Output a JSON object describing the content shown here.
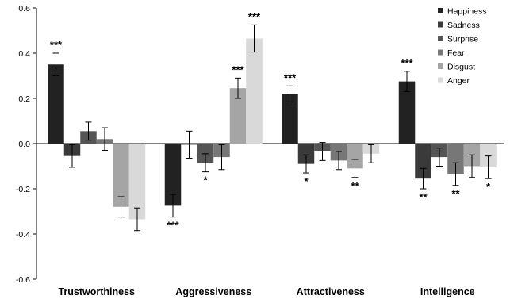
{
  "chart_data": {
    "type": "bar",
    "categories": [
      "Trustworthiness",
      "Aggressiveness",
      "Attractiveness",
      "Intelligence"
    ],
    "series": [
      {
        "name": "Happiness",
        "color": "#222222",
        "values": [
          0.35,
          -0.275,
          0.22,
          0.275
        ],
        "errors": [
          0.05,
          0.05,
          0.035,
          0.045
        ],
        "sig": [
          "***",
          "***",
          "***",
          "***"
        ]
      },
      {
        "name": "Sadness",
        "color": "#3a3a3a",
        "values": [
          -0.055,
          -0.005,
          -0.09,
          -0.155
        ],
        "errors": [
          0.05,
          0.06,
          0.04,
          0.045
        ],
        "sig": [
          "",
          "",
          "*",
          "**"
        ]
      },
      {
        "name": "Surprise",
        "color": "#555555",
        "values": [
          0.055,
          -0.085,
          -0.035,
          -0.06
        ],
        "errors": [
          0.04,
          0.04,
          0.04,
          0.04
        ],
        "sig": [
          "",
          "*",
          "",
          ""
        ]
      },
      {
        "name": "Fear",
        "color": "#777777",
        "values": [
          0.02,
          -0.06,
          -0.075,
          -0.135
        ],
        "errors": [
          0.05,
          0.055,
          0.04,
          0.05
        ],
        "sig": [
          "",
          "",
          "",
          "**"
        ]
      },
      {
        "name": "Disgust",
        "color": "#a5a5a5",
        "values": [
          -0.28,
          0.245,
          -0.11,
          -0.1
        ],
        "errors": [
          0.045,
          0.045,
          0.04,
          0.05
        ],
        "sig": [
          "",
          "***",
          "**",
          ""
        ]
      },
      {
        "name": "Anger",
        "color": "#d9d9d9",
        "values": [
          -0.335,
          0.465,
          -0.045,
          -0.105
        ],
        "errors": [
          0.05,
          0.06,
          0.04,
          0.05
        ],
        "sig": [
          "",
          "***",
          "",
          "*"
        ]
      }
    ],
    "title": "",
    "xlabel": "",
    "ylabel": "",
    "ylim": [
      -0.6,
      0.6
    ],
    "yticks": [
      "0.6",
      "0.4",
      "0.2",
      "0.0",
      "-0.2",
      "-0.4",
      "-0.6"
    ],
    "ytick_values": [
      0.6,
      0.4,
      0.2,
      0.0,
      -0.2,
      -0.4,
      -0.6
    ],
    "grid": false,
    "legend_position": "top-right",
    "error_bars": true
  }
}
